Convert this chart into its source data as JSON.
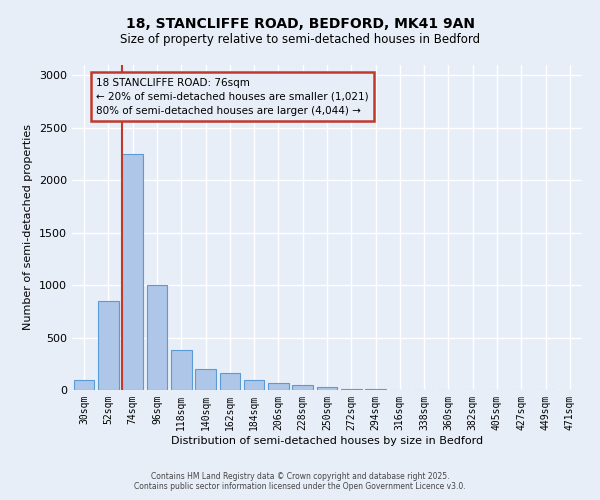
{
  "title_line1": "18, STANCLIFFE ROAD, BEDFORD, MK41 9AN",
  "title_line2": "Size of property relative to semi-detached houses in Bedford",
  "xlabel": "Distribution of semi-detached houses by size in Bedford",
  "ylabel": "Number of semi-detached properties",
  "categories": [
    "30sqm",
    "52sqm",
    "74sqm",
    "96sqm",
    "118sqm",
    "140sqm",
    "162sqm",
    "184sqm",
    "206sqm",
    "228sqm",
    "250sqm",
    "272sqm",
    "294sqm",
    "316sqm",
    "338sqm",
    "360sqm",
    "382sqm",
    "405sqm",
    "427sqm",
    "449sqm",
    "471sqm"
  ],
  "values": [
    100,
    850,
    2250,
    1000,
    380,
    200,
    160,
    100,
    65,
    50,
    30,
    10,
    5,
    4,
    3,
    2,
    1,
    0,
    0,
    0,
    0
  ],
  "bar_color": "#aec6e8",
  "bar_edge_color": "#5b9bd5",
  "property_bar_index": 2,
  "property_line_color": "#c0392b",
  "annotation_text": "18 STANCLIFFE ROAD: 76sqm\n← 20% of semi-detached houses are smaller (1,021)\n80% of semi-detached houses are larger (4,044) →",
  "annotation_box_color": "#c0392b",
  "footer_line1": "Contains HM Land Registry data © Crown copyright and database right 2025.",
  "footer_line2": "Contains public sector information licensed under the Open Government Licence v3.0.",
  "ylim": [
    0,
    3100
  ],
  "background_color": "#e8eef8",
  "grid_color": "#ffffff"
}
